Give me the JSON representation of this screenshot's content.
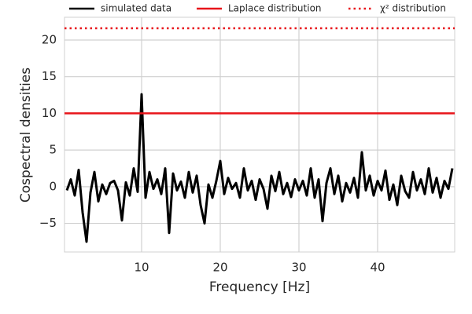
{
  "chart_data": {
    "type": "line",
    "xlabel": "Frequency [Hz]",
    "ylabel": "Cospectral densities",
    "x": [
      0.5,
      1,
      1.5,
      2,
      2.5,
      3,
      3.5,
      4,
      4.5,
      5,
      5.5,
      6,
      6.5,
      7,
      7.5,
      8,
      8.5,
      9,
      9.5,
      10,
      10.5,
      11,
      11.5,
      12,
      12.5,
      13,
      13.5,
      14,
      14.5,
      15,
      15.5,
      16,
      16.5,
      17,
      17.5,
      18,
      18.5,
      19,
      19.5,
      20,
      20.5,
      21,
      21.5,
      22,
      22.5,
      23,
      23.5,
      24,
      24.5,
      25,
      25.5,
      26,
      26.5,
      27,
      27.5,
      28,
      28.5,
      29,
      29.5,
      30,
      30.5,
      31,
      31.5,
      32,
      32.5,
      33,
      33.5,
      34,
      34.5,
      35,
      35.5,
      36,
      36.5,
      37,
      37.5,
      38,
      38.5,
      39,
      39.5,
      40,
      40.5,
      41,
      41.5,
      42,
      42.5,
      43,
      43.5,
      44,
      44.5,
      45,
      45.5,
      46,
      46.5,
      47,
      47.5,
      48,
      48.5,
      49,
      49.5
    ],
    "series": [
      {
        "name": "simulated data",
        "color": "#000000",
        "values": [
          -0.5,
          1.0,
          -1.2,
          2.3,
          -3.5,
          -7.5,
          -0.8,
          2.0,
          -2.0,
          0.3,
          -1.0,
          0.5,
          0.8,
          -0.5,
          -4.6,
          0.6,
          -1.2,
          2.5,
          -0.7,
          12.6,
          -1.5,
          2.0,
          -0.3,
          1.0,
          -1.0,
          2.5,
          -6.3,
          1.8,
          -0.5,
          0.7,
          -1.5,
          2.0,
          -0.8,
          1.5,
          -2.5,
          -5.0,
          0.3,
          -1.5,
          0.8,
          3.5,
          -1.0,
          1.2,
          -0.3,
          0.5,
          -1.5,
          2.5,
          -0.5,
          0.8,
          -1.8,
          1.0,
          -0.3,
          -3.0,
          1.5,
          -0.6,
          2.0,
          -1.0,
          0.5,
          -1.4,
          1.0,
          -0.5,
          0.8,
          -1.2,
          2.5,
          -1.5,
          1.0,
          -4.7,
          0.5,
          2.5,
          -1.0,
          1.5,
          -2.0,
          0.5,
          -0.8,
          1.2,
          -1.5,
          4.7,
          -0.5,
          1.5,
          -1.2,
          0.8,
          -0.5,
          2.2,
          -1.8,
          0.3,
          -2.5,
          1.5,
          -0.6,
          -1.5,
          2.0,
          -0.5,
          1.0,
          -1.0,
          2.5,
          -0.8,
          1.2,
          -1.5,
          0.8,
          -0.3,
          2.5
        ]
      }
    ],
    "hlines": [
      {
        "name": "Laplace distribution",
        "color": "#e8141a",
        "y": 10,
        "style": "solid"
      },
      {
        "name": "χ² distribution",
        "color": "#e8141a",
        "y": 21.6,
        "style": "dotted"
      }
    ],
    "xlim": [
      0.2,
      49.8
    ],
    "ylim": [
      -8.9,
      23.1
    ],
    "xticks": [
      10,
      20,
      30,
      40
    ],
    "yticks": [
      {
        "value": -5,
        "label": "−5"
      },
      0,
      5,
      10,
      15,
      20
    ],
    "grid": true,
    "legend": "top"
  }
}
